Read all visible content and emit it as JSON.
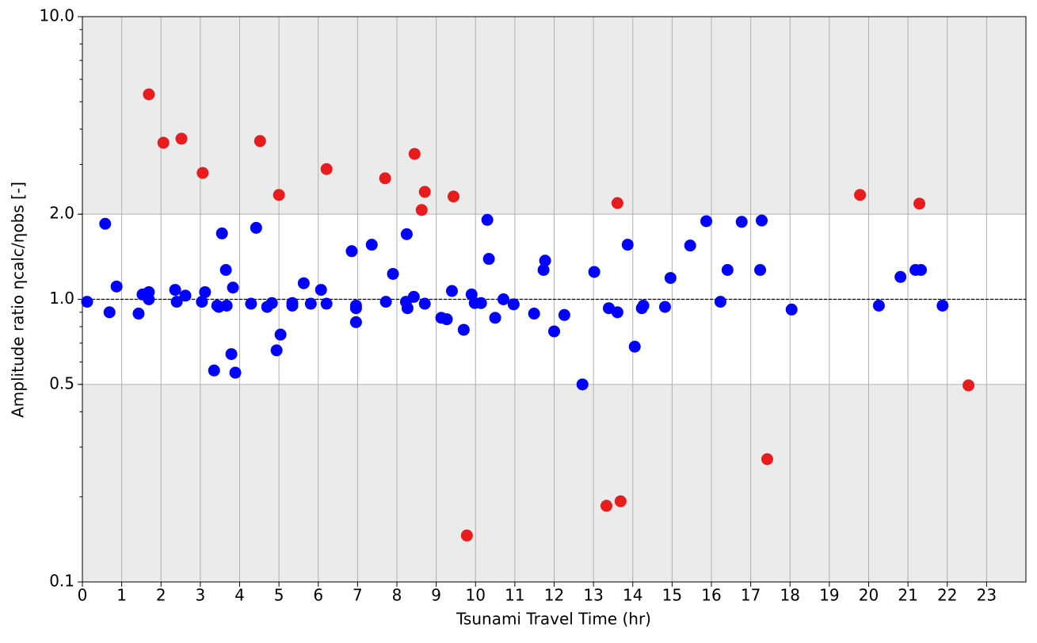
{
  "chart_data": {
    "type": "scatter",
    "xlabel": "Tsunami Travel Time (hr)",
    "ylabel": "Amplitude ratio ηcalc/ηobs [-]",
    "xlim": [
      0,
      24
    ],
    "xticks": [
      0,
      1,
      2,
      3,
      4,
      5,
      6,
      7,
      8,
      9,
      10,
      11,
      12,
      13,
      14,
      15,
      16,
      17,
      18,
      19,
      20,
      21,
      22,
      23
    ],
    "ylim": [
      0.1,
      10
    ],
    "yticks": [
      0.1,
      0.5,
      {
        "value": 1,
        "label": "1.0"
      },
      {
        "value": 2,
        "label": "2.0"
      },
      {
        "value": 10,
        "label": "10.0"
      }
    ],
    "log_y": true,
    "grid": true,
    "band_inside": [
      0.5,
      2
    ],
    "reference_line": 1,
    "series": [
      {
        "color": "#0000ff",
        "x": [
          0.12,
          0.58,
          0.69,
          0.87,
          1.43,
          1.53,
          1.69,
          1.69,
          2.36,
          2.4,
          2.62,
          3.04,
          3.12,
          3.35,
          3.43,
          3.47,
          3.55,
          3.65,
          3.67,
          3.79,
          3.83,
          3.89,
          4.29,
          4.42,
          4.7,
          4.82,
          4.94,
          5.04,
          5.34,
          5.34,
          5.63,
          5.81,
          6.07,
          6.21,
          6.85,
          6.96,
          6.96,
          6.96,
          7.36,
          7.72,
          7.9,
          8.25,
          8.23,
          8.27,
          8.43,
          8.71,
          9.13,
          9.27,
          9.4,
          9.7,
          9.9,
          9.98,
          10.14,
          10.3,
          10.34,
          10.5,
          10.71,
          10.97,
          11.49,
          11.73,
          11.77,
          12.0,
          12.26,
          12.72,
          13.02,
          13.39,
          13.61,
          13.87,
          14.05,
          14.23,
          14.27,
          14.82,
          14.96,
          15.46,
          15.87,
          16.23,
          16.41,
          16.77,
          17.24,
          17.28,
          18.04,
          20.26,
          20.81,
          21.19,
          21.33,
          21.88
        ],
        "values": [
          0.98,
          1.85,
          0.9,
          1.11,
          0.89,
          1.04,
          1.06,
          1.0,
          1.08,
          0.98,
          1.03,
          0.98,
          1.06,
          0.56,
          0.95,
          0.94,
          1.71,
          1.27,
          0.95,
          0.64,
          1.1,
          0.55,
          0.965,
          1.79,
          0.94,
          0.97,
          0.66,
          0.75,
          0.97,
          0.95,
          1.14,
          0.965,
          1.08,
          0.965,
          1.48,
          0.95,
          0.93,
          0.83,
          1.56,
          0.98,
          1.23,
          1.7,
          0.98,
          0.93,
          1.02,
          0.965,
          0.86,
          0.85,
          1.07,
          0.78,
          1.04,
          0.97,
          0.97,
          1.91,
          1.39,
          0.86,
          1.0,
          0.96,
          0.89,
          1.27,
          1.37,
          0.77,
          0.88,
          0.5,
          1.25,
          0.93,
          0.9,
          1.56,
          0.68,
          0.93,
          0.95,
          0.94,
          1.19,
          1.55,
          1.89,
          0.98,
          1.27,
          1.88,
          1.27,
          1.9,
          0.92,
          0.95,
          1.2,
          1.27,
          1.27,
          0.95
        ]
      },
      {
        "color": "#e81c1c",
        "x": [
          1.69,
          2.06,
          2.52,
          3.06,
          4.52,
          5.0,
          6.21,
          7.7,
          8.45,
          8.71,
          8.63,
          9.44,
          9.78,
          13.33,
          13.69,
          13.61,
          17.42,
          19.78,
          21.29,
          22.54
        ],
        "values": [
          5.31,
          3.58,
          3.7,
          2.8,
          3.63,
          2.34,
          2.89,
          2.68,
          3.27,
          2.4,
          2.07,
          2.31,
          0.146,
          0.186,
          0.193,
          2.19,
          0.272,
          2.34,
          2.18,
          0.496
        ]
      }
    ]
  }
}
